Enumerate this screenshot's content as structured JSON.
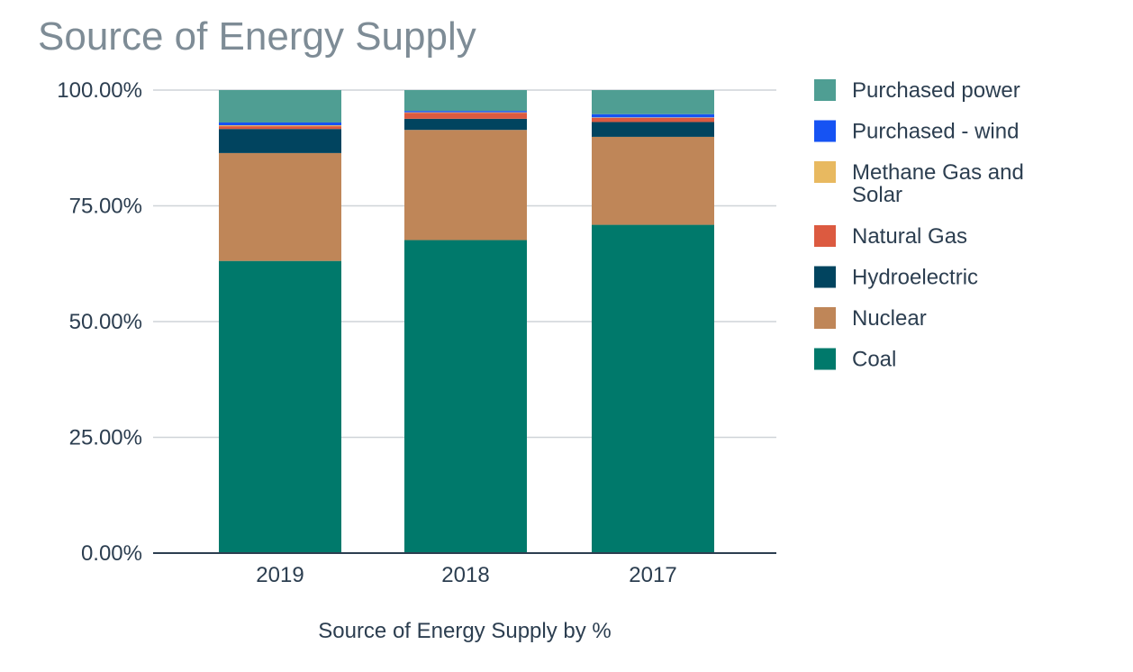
{
  "chart_data": {
    "type": "bar",
    "stacked": true,
    "title": "Source of Energy Supply",
    "xlabel": "Source of Energy Supply by %",
    "ylabel": "",
    "ylim": [
      0,
      100
    ],
    "ytick_values": [
      0,
      25,
      50,
      75,
      100
    ],
    "ytick_labels": [
      "0.00%",
      "25.00%",
      "50.00%",
      "75.00%",
      "100.00%"
    ],
    "categories": [
      "2019",
      "2018",
      "2017"
    ],
    "series": [
      {
        "name": "Coal",
        "color": "#00796b",
        "values": [
          63.1,
          67.6,
          70.9
        ]
      },
      {
        "name": "Nuclear",
        "color": "#bf8658",
        "values": [
          23.3,
          23.8,
          19.0
        ]
      },
      {
        "name": "Hydroelectric",
        "color": "#01445f",
        "values": [
          5.2,
          2.4,
          3.2
        ]
      },
      {
        "name": "Natural Gas",
        "color": "#dc5a40",
        "values": [
          0.6,
          1.3,
          0.9
        ]
      },
      {
        "name": "Methane Gas and Solar",
        "color": "#e8b960",
        "values": [
          0.2,
          0.1,
          0.1
        ]
      },
      {
        "name": "Purchased - wind",
        "color": "#1653f3",
        "values": [
          0.6,
          0.3,
          0.7
        ]
      },
      {
        "name": "Purchased power",
        "color": "#4f9e93",
        "values": [
          7.0,
          4.5,
          5.2
        ]
      }
    ],
    "legend": {
      "position": "right",
      "order": [
        "Purchased power",
        "Purchased - wind",
        "Methane Gas and Solar",
        "Natural Gas",
        "Hydroelectric",
        "Nuclear",
        "Coal"
      ]
    },
    "grid": true
  }
}
